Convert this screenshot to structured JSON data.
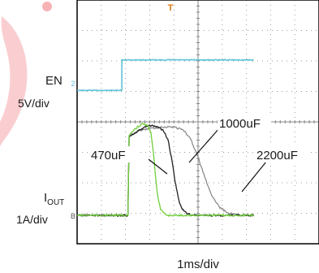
{
  "chart_data": {
    "type": "line",
    "title": "",
    "xlabel": "1ms/div",
    "grid": true,
    "x_divisions": 10,
    "y_divisions": 8,
    "channel_labels": [
      {
        "name": "EN",
        "scale": "5V/div",
        "marker": "2"
      },
      {
        "name": "I",
        "sub": "OUT",
        "scale": "1A/div",
        "marker": "B"
      }
    ],
    "trigger_marker": "T",
    "annotations": [
      "470uF",
      "1000uF",
      "2200uF"
    ],
    "colors": {
      "en": "#5bc4d6",
      "c470": "#6fcf3a",
      "c1000": "#202020",
      "c2200": "#8c8c8c",
      "trigger": "#e07a10",
      "frame": "#111111",
      "grid": "#9a9a9a",
      "logo": "#e8222e"
    },
    "series": [
      {
        "name": "EN",
        "color": "#5bc4d6",
        "x": [
          0,
          1.85,
          1.85,
          7.3
        ],
        "y": [
          4.1,
          4.1,
          5.1,
          5.1
        ]
      },
      {
        "name": "470uF",
        "color": "#6fcf3a",
        "x": [
          0,
          2.1,
          2.15,
          2.3,
          2.5,
          2.7,
          2.9,
          3.05,
          3.15,
          3.25,
          3.35,
          3.45,
          3.6,
          3.75,
          4.0,
          7.3
        ],
        "y": [
          0,
          0,
          2.6,
          2.75,
          2.9,
          3.0,
          2.95,
          2.7,
          2.1,
          1.2,
          0.55,
          0.2,
          0.05,
          0,
          0,
          0
        ]
      },
      {
        "name": "1000uF",
        "color": "#202020",
        "x": [
          0,
          2.1,
          2.15,
          2.4,
          2.7,
          3.0,
          3.3,
          3.55,
          3.75,
          3.9,
          4.05,
          4.2,
          4.35,
          4.55,
          4.8,
          7.3
        ],
        "y": [
          0,
          0,
          2.6,
          2.7,
          2.85,
          2.95,
          2.9,
          2.8,
          2.5,
          1.9,
          1.1,
          0.5,
          0.2,
          0.05,
          0,
          0
        ]
      },
      {
        "name": "2200uF",
        "color": "#8c8c8c",
        "x": [
          0,
          2.1,
          2.15,
          2.5,
          3.0,
          3.5,
          4.0,
          4.4,
          4.7,
          5.0,
          5.3,
          5.6,
          5.9,
          6.2,
          6.5,
          7.3
        ],
        "y": [
          0,
          0,
          2.6,
          2.75,
          2.85,
          2.9,
          2.9,
          2.8,
          2.5,
          1.9,
          1.2,
          0.6,
          0.25,
          0.1,
          0.02,
          0
        ]
      }
    ]
  }
}
